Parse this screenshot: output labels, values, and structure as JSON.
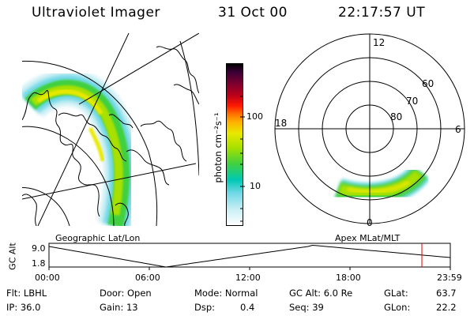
{
  "header": {
    "instrument": "Ultraviolet Imager",
    "date": "31 Oct 00",
    "time": "22:17:57 UT"
  },
  "colorbar": {
    "unit_label": "photon cm⁻²s⁻¹",
    "tick_labels": [
      "100",
      "10"
    ],
    "colors": [
      "#000000",
      "#3a0035",
      "#7a0030",
      "#c00018",
      "#ff1a00",
      "#ff7000",
      "#ffb000",
      "#e8e800",
      "#a8e000",
      "#40d040",
      "#00c8b4",
      "#70d8e6",
      "#c8eef4",
      "#ffffff"
    ]
  },
  "polar": {
    "mlt_labels": {
      "top": "12",
      "left": "18",
      "right": "6",
      "bottom": "0"
    },
    "lat_labels": [
      "60",
      "70",
      "80"
    ]
  },
  "geo_label": "Geographic Lat/Lon",
  "apex_label": "Apex MLat/MLT",
  "altitude_plot": {
    "ylabel": "GC Alt",
    "ymax_label": "9.0",
    "ymin_label": "1.8",
    "time_labels": [
      "00:00",
      "06:00",
      "12:00",
      "18:00",
      "23:59"
    ],
    "current_time_marker_hours": 22.3
  },
  "info": {
    "filter": "Flt: LBHL",
    "ip": "IP: 36.0",
    "door": "Door: Open",
    "gain": "Gain: 13",
    "mode": "Mode: Normal",
    "dsp_label": "Dsp:",
    "dsp_value": "0.4",
    "gc_alt": "GC Alt: 6.0 Re",
    "seq": "Seq: 39",
    "glat_label": "GLat:",
    "glat_value": "63.7",
    "glon_label": "GLon:",
    "glon_value": "22.2"
  }
}
